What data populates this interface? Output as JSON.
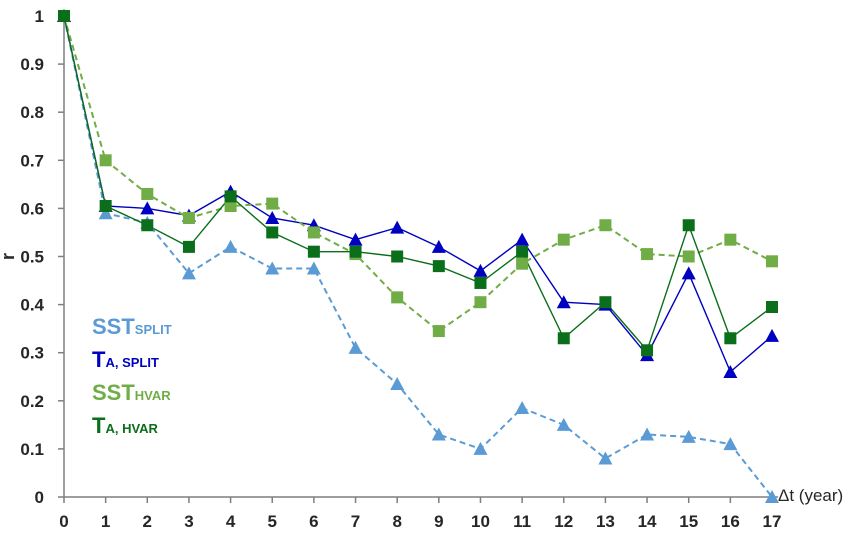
{
  "chart_data": {
    "type": "line",
    "ylabel": "r",
    "xlabel": "Δt (year)",
    "xlim": [
      0,
      17
    ],
    "ylim": [
      0,
      1
    ],
    "x_ticks": [
      "0",
      "1",
      "2",
      "3",
      "4",
      "5",
      "6",
      "7",
      "8",
      "9",
      "10",
      "11",
      "12",
      "13",
      "14",
      "15",
      "16",
      "17"
    ],
    "y_ticks": [
      "0",
      "0.1",
      "0.2",
      "0.3",
      "0.4",
      "0.5",
      "0.6",
      "0.7",
      "0.8",
      "0.9",
      "1"
    ],
    "grid": false,
    "legend_position": "left",
    "series": [
      {
        "name": "SST",
        "subscript": "SPLIT",
        "color": "#5b9bd5",
        "line_style": "dashed",
        "marker": "triangle",
        "x": [
          0,
          1,
          2,
          3,
          4,
          5,
          6,
          7,
          8,
          9,
          10,
          11,
          12,
          13,
          14,
          15,
          16,
          17
        ],
        "values": [
          1.0,
          0.59,
          0.57,
          0.465,
          0.52,
          0.475,
          0.475,
          0.31,
          0.235,
          0.13,
          0.1,
          0.185,
          0.15,
          0.08,
          0.13,
          0.125,
          0.11,
          0.0
        ]
      },
      {
        "name": "T",
        "subscript": "A, SPLIT",
        "color": "#0000c0",
        "line_style": "solid",
        "marker": "triangle",
        "x": [
          0,
          1,
          2,
          3,
          4,
          5,
          6,
          7,
          8,
          9,
          10,
          11,
          12,
          13,
          14,
          15,
          16,
          17
        ],
        "values": [
          1.0,
          0.605,
          0.6,
          0.585,
          0.635,
          0.58,
          0.565,
          0.535,
          0.56,
          0.52,
          0.47,
          0.535,
          0.405,
          0.4,
          0.295,
          0.465,
          0.26,
          0.335
        ]
      },
      {
        "name": "SST",
        "subscript": "HVAR",
        "color": "#70ad47",
        "line_style": "dashed",
        "marker": "square",
        "x": [
          0,
          1,
          2,
          3,
          4,
          5,
          6,
          7,
          8,
          9,
          10,
          11,
          12,
          13,
          14,
          15,
          16,
          17
        ],
        "values": [
          1.0,
          0.7,
          0.63,
          0.58,
          0.605,
          0.61,
          0.55,
          0.505,
          0.415,
          0.345,
          0.405,
          0.485,
          0.535,
          0.565,
          0.505,
          0.5,
          0.535,
          0.49
        ]
      },
      {
        "name": "T",
        "subscript": "A, HVAR",
        "color": "#0b6e1a",
        "line_style": "solid",
        "marker": "square",
        "x": [
          0,
          1,
          2,
          3,
          4,
          5,
          6,
          7,
          8,
          9,
          10,
          11,
          12,
          13,
          14,
          15,
          16,
          17
        ],
        "values": [
          1.0,
          0.605,
          0.565,
          0.52,
          0.625,
          0.55,
          0.51,
          0.51,
          0.5,
          0.48,
          0.445,
          0.51,
          0.33,
          0.405,
          0.305,
          0.565,
          0.33,
          0.395
        ]
      }
    ]
  }
}
